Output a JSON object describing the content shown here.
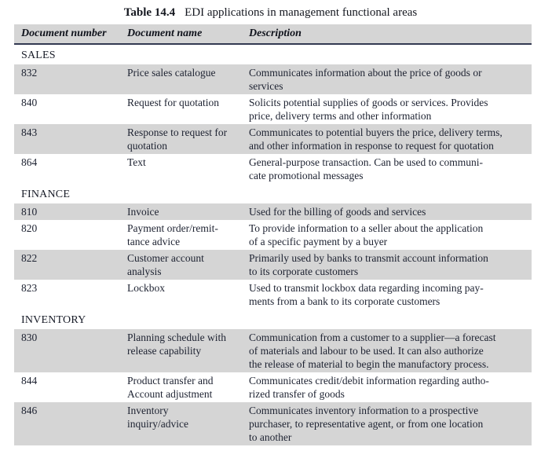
{
  "title": {
    "label": "Table 14.4",
    "caption": "EDI applications in management functional areas"
  },
  "columns": [
    "Document number",
    "Document name",
    "Description"
  ],
  "colors": {
    "row_shade": "#d5d5d5",
    "header_rule": "#333a52",
    "text": "#1d2231"
  },
  "sections": [
    {
      "name": "SALES",
      "rows": [
        {
          "number": "832",
          "name": "Price sales catalogue",
          "description": "Communicates information about the price of goods or\nservices",
          "shaded": true
        },
        {
          "number": "840",
          "name": "Request for quotation",
          "description": "Solicits potential supplies of goods or services. Provides\nprice, delivery terms and other information",
          "shaded": false
        },
        {
          "number": "843",
          "name": "Response to request for\nquotation",
          "description": "Communicates to potential buyers the price, delivery terms,\nand other information in response to request for quotation",
          "shaded": true
        },
        {
          "number": "864",
          "name": "Text",
          "description": "General-purpose transaction. Can be used to communi-\ncate promotional messages",
          "shaded": false
        }
      ]
    },
    {
      "name": "FINANCE",
      "rows": [
        {
          "number": "810",
          "name": "Invoice",
          "description": "Used for the billing of goods and services",
          "shaded": true
        },
        {
          "number": "820",
          "name": "Payment order/remit-\ntance advice",
          "description": "To provide information to a seller about the application\nof a specific payment by a buyer",
          "shaded": false
        },
        {
          "number": "822",
          "name": "Customer account\nanalysis",
          "description": "Primarily used by banks to transmit account information\nto its corporate customers",
          "shaded": true
        },
        {
          "number": "823",
          "name": "Lockbox",
          "description": "Used to transmit lockbox data regarding incoming pay-\nments from a bank to its corporate customers",
          "shaded": false
        }
      ]
    },
    {
      "name": "INVENTORY",
      "rows": [
        {
          "number": "830",
          "name": "Planning schedule with\nrelease capability",
          "description": "Communication from a customer to a supplier—a forecast\nof materials and labour to be used. It can also authorize\nthe release of material to begin the manufactory process.",
          "shaded": true
        },
        {
          "number": "844",
          "name": "Product transfer and\nAccount adjustment",
          "description": "Communicates credit/debit information regarding autho-\nrized transfer of goods",
          "shaded": false
        },
        {
          "number": "846",
          "name": "Inventory\ninquiry/advice",
          "description": "Communicates inventory information to a prospective\npurchaser, to representative agent, or from one location\nto another",
          "shaded": true
        }
      ]
    }
  ]
}
